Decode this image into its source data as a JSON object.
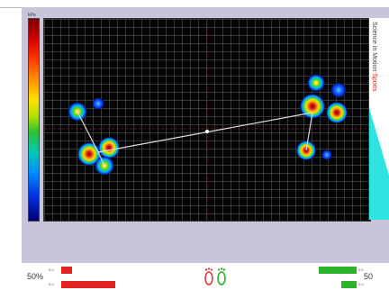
{
  "colorbar": {
    "label": "kPa"
  },
  "brand": {
    "line1": "Science in Motion",
    "line2": "Sports"
  },
  "balance": {
    "left_percent": "50%",
    "right_percent": "50",
    "left_upper_label": "0.0",
    "left_lower_label": "0.0",
    "right_upper_label": "0.0",
    "right_lower_label": "0.0",
    "left_upper_fraction": 0.2,
    "left_lower_fraction": 1.0,
    "right_upper_fraction": 0.85,
    "right_lower_fraction": 0.35
  },
  "colors": {
    "left_bars": "#e32222",
    "right_bars": "#2bb32b",
    "left_foot": "#e33a3a",
    "right_foot": "#2bb32b"
  },
  "icons": {
    "feet": "footprints-icon"
  }
}
